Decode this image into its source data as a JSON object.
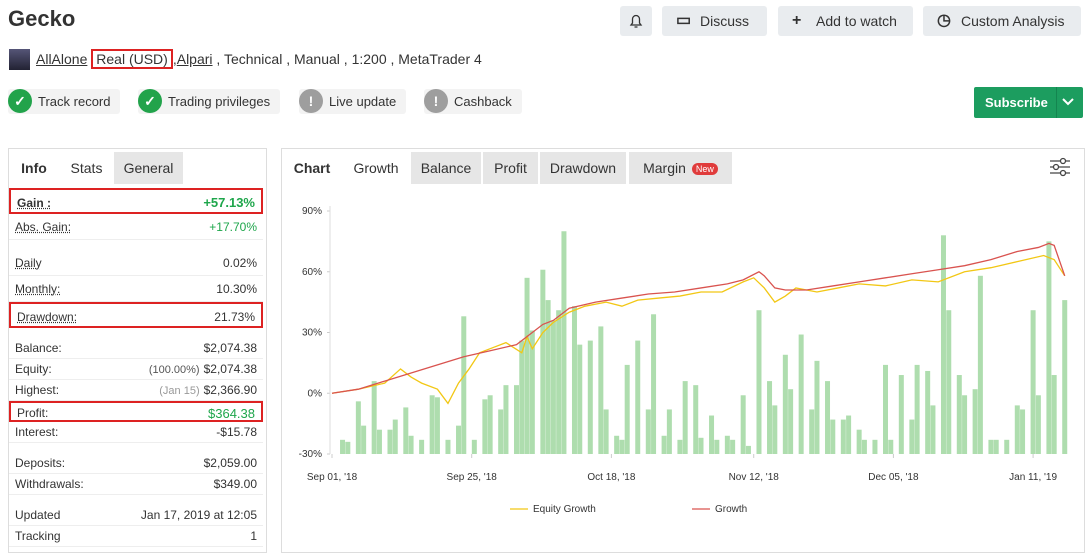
{
  "header": {
    "title": "Gecko",
    "buttons": [
      "Discuss",
      "Add to watch",
      "Custom Analysis"
    ]
  },
  "account": {
    "owner": "AllAlone",
    "type": "Real (USD)",
    "separator": ",",
    "broker": "Alpari",
    "details": ", Technical , Manual , 1:200 , MetaTrader 4"
  },
  "badges": [
    {
      "label": "Track record",
      "status": "ok"
    },
    {
      "label": "Trading privileges",
      "status": "ok"
    },
    {
      "label": "Live update",
      "status": "warn"
    },
    {
      "label": "Cashback",
      "status": "warn"
    }
  ],
  "subscribe": "Subscribe",
  "info": {
    "tabs": [
      "Info",
      "Stats",
      "General"
    ],
    "groups": [
      [
        {
          "label": "Gain :",
          "value": "+57.13%",
          "color": "green",
          "highlight": true,
          "bold": true
        },
        {
          "label": "Abs. Gain:",
          "value": "+17.70%",
          "color": "green"
        }
      ],
      [
        {
          "label": "Daily",
          "value": "0.02%"
        },
        {
          "label": "Monthly:",
          "value": "10.30%"
        },
        {
          "label": "Drawdown:",
          "value": "21.73%",
          "highlight": true
        }
      ],
      [
        {
          "label": "Balance:",
          "value": "$2,074.38"
        },
        {
          "label": "Equity:",
          "note": "(100.00%)",
          "value": "$2,074.38"
        },
        {
          "label": "Highest:",
          "note": "(Jan 15)",
          "value": "$2,366.90"
        },
        {
          "label": "Profit:",
          "value": "$364.38",
          "color": "green",
          "highlight": true
        },
        {
          "label": "Interest:",
          "value": "-$15.78"
        }
      ],
      [
        {
          "label": "Deposits:",
          "value": "$2,059.00"
        },
        {
          "label": "Withdrawals:",
          "value": "$349.00"
        }
      ],
      [
        {
          "label": "Updated",
          "value": "Jan 17, 2019 at 12:05"
        },
        {
          "label": "Tracking",
          "value": "1"
        }
      ]
    ]
  },
  "chart": {
    "label": "Chart",
    "tabs": [
      "Growth",
      "Balance",
      "Profit",
      "Drawdown",
      "Margin"
    ],
    "new_badge": "New",
    "ylim": [
      -30,
      90
    ],
    "yticks": [
      {
        "value": 90,
        "label": "90%"
      },
      {
        "value": 60,
        "label": "60%"
      },
      {
        "value": 30,
        "label": "30%"
      },
      {
        "value": 0,
        "label": "0%"
      },
      {
        "value": -30,
        "label": "-30%"
      }
    ],
    "xlim": [
      0,
      140
    ],
    "xticks": [
      {
        "value": 0,
        "label": "Sep 01, '18"
      },
      {
        "value": 26.5,
        "label": "Sep 25, '18"
      },
      {
        "value": 53,
        "label": "Oct 18, '18"
      },
      {
        "value": 80,
        "label": "Nov 12, '18"
      },
      {
        "value": 106.5,
        "label": "Dec 05, '18"
      },
      {
        "value": 133,
        "label": "Jan 11, '19"
      }
    ],
    "bars": {
      "color": "#9ad49a",
      "x": [
        2,
        3,
        5,
        6,
        8,
        9,
        11,
        12,
        14,
        15,
        17,
        19,
        20,
        22,
        24,
        25,
        27,
        29,
        30,
        32,
        33,
        35,
        36,
        37,
        38,
        40,
        41,
        42,
        43,
        44,
        46,
        47,
        49,
        51,
        52,
        54,
        55,
        56,
        58,
        60,
        61,
        63,
        64,
        66,
        67,
        69,
        70,
        72,
        73,
        75,
        76,
        78,
        79,
        81,
        83,
        84,
        86,
        87,
        89,
        91,
        92,
        94,
        95,
        97,
        98,
        100,
        101,
        103,
        105,
        106,
        108,
        110,
        111,
        113,
        114,
        116,
        117,
        119,
        120,
        122,
        123,
        125,
        126,
        128,
        130,
        131,
        133,
        134,
        136,
        137,
        139
      ],
      "values": [
        -23,
        -24,
        -4,
        -16,
        6,
        -18,
        -18,
        -13,
        -7,
        -21,
        -23,
        -1,
        -2,
        -23,
        -16,
        38,
        -23,
        -3,
        -1,
        -8,
        4,
        4,
        26,
        57,
        31,
        61,
        46,
        36,
        41,
        80,
        43,
        24,
        26,
        33,
        -8,
        -21,
        -23,
        14,
        26,
        -8,
        39,
        -21,
        -8,
        -23,
        6,
        4,
        -22,
        -11,
        -23,
        -21,
        -23,
        -1,
        -26,
        41,
        6,
        -6,
        19,
        2,
        29,
        -8,
        16,
        6,
        -13,
        -13,
        -11,
        -18,
        -23,
        -23,
        14,
        -23,
        9,
        -13,
        14,
        11,
        -6,
        78,
        41,
        9,
        -1,
        2,
        58,
        -23,
        -23,
        -23,
        -6,
        -8,
        41,
        -1,
        75,
        9,
        46
      ]
    },
    "series": [
      {
        "name": "Equity Growth",
        "color": "#f2c714",
        "x": [
          0,
          5,
          10,
          13,
          15,
          17,
          20,
          22,
          24,
          26,
          28,
          30,
          33,
          36,
          37,
          38,
          40,
          42,
          45,
          48,
          52,
          55,
          58,
          62,
          66,
          70,
          74,
          78,
          80,
          82,
          84,
          86,
          88,
          92,
          96,
          100,
          105,
          110,
          115,
          120,
          125,
          130,
          135,
          137,
          139
        ],
        "values": [
          0,
          2,
          5,
          12,
          8,
          5,
          2,
          -5,
          5,
          12,
          20,
          22,
          25,
          20,
          28,
          22,
          30,
          35,
          40,
          43,
          45,
          43,
          46,
          47,
          48,
          50,
          50,
          55,
          57,
          52,
          45,
          48,
          52,
          50,
          52,
          54,
          53,
          56,
          55,
          60,
          62,
          65,
          68,
          66,
          58
        ]
      },
      {
        "name": "Growth",
        "color": "#d9534f",
        "x": [
          0,
          5,
          10,
          15,
          20,
          25,
          30,
          35,
          38,
          40,
          42,
          45,
          50,
          55,
          60,
          65,
          70,
          75,
          78,
          81,
          82,
          84,
          86,
          90,
          95,
          100,
          105,
          110,
          115,
          120,
          125,
          130,
          134,
          136,
          137,
          139
        ],
        "values": [
          0,
          2,
          6,
          10,
          14,
          18,
          21,
          24,
          30,
          34,
          36,
          42,
          45,
          47,
          49,
          50,
          52,
          54,
          56,
          60,
          58,
          52,
          51,
          51,
          53,
          55,
          57,
          59,
          61,
          63,
          66,
          70,
          72,
          74,
          73,
          58
        ]
      }
    ]
  }
}
